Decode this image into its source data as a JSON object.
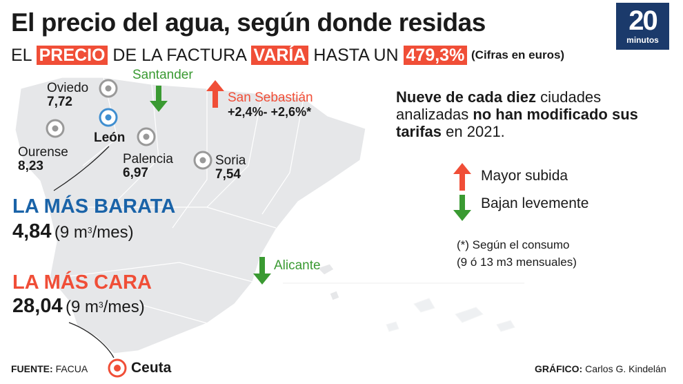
{
  "header": {
    "title": "El precio del agua, según donde residas",
    "subtitle_parts": [
      "EL",
      "PRECIO",
      "DE LA FACTURA",
      "VARÍA",
      "HASTA UN",
      "479,3%"
    ],
    "units_note": "(Cifras en euros)",
    "logo": {
      "number": "20",
      "word": "minutos"
    }
  },
  "colors": {
    "accent_red": "#f04e37",
    "cheapest_blue": "#1a63a8",
    "decrease_green": "#3a9a32",
    "logo_blue": "#1b3a6b",
    "map_gray": "#e6e7e9"
  },
  "map": {
    "cities": [
      {
        "name": "Oviedo",
        "value": "7,72"
      },
      {
        "name": "León",
        "value": ""
      },
      {
        "name": "Ourense",
        "value": "8,23"
      },
      {
        "name": "Palencia",
        "value": "6,97"
      },
      {
        "name": "Soria",
        "value": "7,54"
      },
      {
        "name": "Ceuta",
        "value": ""
      }
    ],
    "santander": "Santander",
    "san_sebastian": "San Sebastián",
    "san_sebastian_change": "+2,4%- +2,6%*",
    "alicante": "Alicante"
  },
  "cheapest": {
    "label": "LA MÁS BARATA",
    "value": "4,84",
    "unit_pre": "(9 m",
    "unit_sup": "3",
    "unit_post": "/mes)"
  },
  "most_expensive": {
    "label": "LA MÁS CARA",
    "value": "28,04",
    "unit_pre": "(9 m",
    "unit_sup": "3",
    "unit_post": "/mes)"
  },
  "note": {
    "b1": "Nueve de cada diez",
    "t1": " ciudades analizadas ",
    "b2": "no han modificado sus tarifas",
    "t2": " en 2021."
  },
  "legend": {
    "up": "Mayor subida",
    "down": "Bajan levemente"
  },
  "footnote": {
    "line1": "(*) Según el consumo",
    "line2": "(9 ó 13 m3 mensuales)"
  },
  "footer": {
    "source_label": "FUENTE:",
    "source": "FACUA",
    "credit_label": "GRÁFICO:",
    "credit": "Carlos G. Kindelán"
  }
}
